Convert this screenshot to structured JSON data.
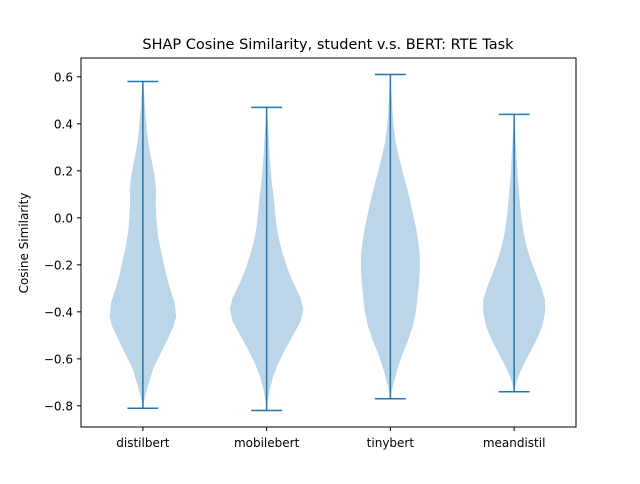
{
  "chart_data": {
    "type": "violin",
    "title": "SHAP Cosine Similarity, student v.s. BERT: RTE Task",
    "xlabel": "",
    "ylabel": "Cosine Similarity",
    "categories": [
      "distilbert",
      "mobilebert",
      "tinybert",
      "meandistil"
    ],
    "ylim": [
      -0.89,
      0.68
    ],
    "yticks": [
      -0.8,
      -0.6,
      -0.4,
      -0.2,
      0.0,
      0.2,
      0.4,
      0.6
    ],
    "ytick_labels": [
      "−0.8",
      "−0.6",
      "−0.4",
      "−0.2",
      "0.0",
      "0.2",
      "0.4",
      "0.6"
    ],
    "grid": false,
    "colors": {
      "body": "#1f77b4",
      "body_alpha": 0.3,
      "lines": "#1f77b4"
    },
    "violins": [
      {
        "name": "distilbert",
        "min": -0.81,
        "max": 0.58,
        "profile": [
          [
            -0.81,
            0.0
          ],
          [
            -0.78,
            0.03
          ],
          [
            -0.74,
            0.09
          ],
          [
            -0.7,
            0.16
          ],
          [
            -0.64,
            0.27
          ],
          [
            -0.58,
            0.45
          ],
          [
            -0.52,
            0.63
          ],
          [
            -0.46,
            0.8
          ],
          [
            -0.42,
            0.86
          ],
          [
            -0.36,
            0.82
          ],
          [
            -0.3,
            0.7
          ],
          [
            -0.24,
            0.6
          ],
          [
            -0.18,
            0.52
          ],
          [
            -0.12,
            0.44
          ],
          [
            -0.06,
            0.38
          ],
          [
            0.0,
            0.35
          ],
          [
            0.06,
            0.33
          ],
          [
            0.12,
            0.34
          ],
          [
            0.18,
            0.3
          ],
          [
            0.24,
            0.23
          ],
          [
            0.3,
            0.16
          ],
          [
            0.36,
            0.11
          ],
          [
            0.42,
            0.08
          ],
          [
            0.48,
            0.05
          ],
          [
            0.54,
            0.03
          ],
          [
            0.58,
            0.0
          ]
        ]
      },
      {
        "name": "mobilebert",
        "min": -0.82,
        "max": 0.47,
        "profile": [
          [
            -0.82,
            0.0
          ],
          [
            -0.78,
            0.03
          ],
          [
            -0.74,
            0.07
          ],
          [
            -0.68,
            0.16
          ],
          [
            -0.62,
            0.3
          ],
          [
            -0.56,
            0.48
          ],
          [
            -0.5,
            0.68
          ],
          [
            -0.44,
            0.88
          ],
          [
            -0.39,
            0.95
          ],
          [
            -0.34,
            0.88
          ],
          [
            -0.28,
            0.7
          ],
          [
            -0.22,
            0.55
          ],
          [
            -0.16,
            0.43
          ],
          [
            -0.1,
            0.33
          ],
          [
            -0.04,
            0.26
          ],
          [
            0.02,
            0.22
          ],
          [
            0.08,
            0.19
          ],
          [
            0.14,
            0.14
          ],
          [
            0.2,
            0.11
          ],
          [
            0.26,
            0.08
          ],
          [
            0.32,
            0.06
          ],
          [
            0.38,
            0.04
          ],
          [
            0.44,
            0.02
          ],
          [
            0.47,
            0.0
          ]
        ]
      },
      {
        "name": "tinybert",
        "min": -0.77,
        "max": 0.61,
        "profile": [
          [
            -0.77,
            0.0
          ],
          [
            -0.74,
            0.03
          ],
          [
            -0.7,
            0.09
          ],
          [
            -0.64,
            0.19
          ],
          [
            -0.58,
            0.31
          ],
          [
            -0.52,
            0.46
          ],
          [
            -0.46,
            0.58
          ],
          [
            -0.4,
            0.66
          ],
          [
            -0.34,
            0.7
          ],
          [
            -0.28,
            0.74
          ],
          [
            -0.22,
            0.76
          ],
          [
            -0.16,
            0.76
          ],
          [
            -0.1,
            0.72
          ],
          [
            -0.04,
            0.66
          ],
          [
            0.02,
            0.58
          ],
          [
            0.08,
            0.5
          ],
          [
            0.14,
            0.41
          ],
          [
            0.2,
            0.31
          ],
          [
            0.26,
            0.22
          ],
          [
            0.32,
            0.14
          ],
          [
            0.38,
            0.09
          ],
          [
            0.44,
            0.06
          ],
          [
            0.5,
            0.04
          ],
          [
            0.56,
            0.02
          ],
          [
            0.61,
            0.0
          ]
        ]
      },
      {
        "name": "meandistil",
        "min": -0.74,
        "max": 0.44,
        "profile": [
          [
            -0.74,
            0.0
          ],
          [
            -0.71,
            0.04
          ],
          [
            -0.67,
            0.12
          ],
          [
            -0.62,
            0.26
          ],
          [
            -0.57,
            0.42
          ],
          [
            -0.52,
            0.58
          ],
          [
            -0.46,
            0.73
          ],
          [
            -0.4,
            0.8
          ],
          [
            -0.35,
            0.8
          ],
          [
            -0.3,
            0.71
          ],
          [
            -0.24,
            0.57
          ],
          [
            -0.18,
            0.43
          ],
          [
            -0.12,
            0.32
          ],
          [
            -0.06,
            0.24
          ],
          [
            0.0,
            0.19
          ],
          [
            0.06,
            0.15
          ],
          [
            0.12,
            0.12
          ],
          [
            0.18,
            0.09
          ],
          [
            0.24,
            0.07
          ],
          [
            0.3,
            0.05
          ],
          [
            0.36,
            0.03
          ],
          [
            0.4,
            0.02
          ],
          [
            0.44,
            0.0
          ]
        ]
      }
    ]
  }
}
